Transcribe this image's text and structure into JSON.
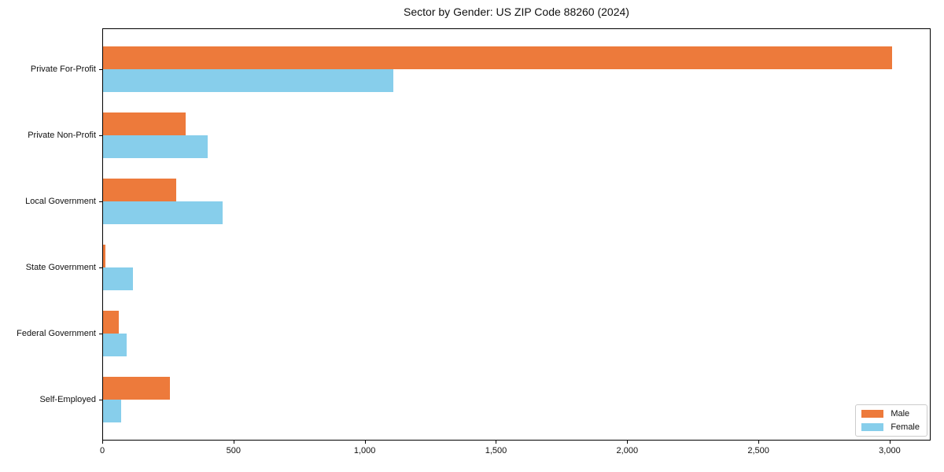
{
  "figure": {
    "title": "Sector by Gender: US ZIP Code 88260 (2024)"
  },
  "chart_data": {
    "type": "bar",
    "orientation": "horizontal",
    "title": "Sector by Gender: US ZIP Code 88260 (2024)",
    "categories": [
      "Private For-Profit",
      "Private Non-Profit",
      "Local Government",
      "State Government",
      "Federal Government",
      "Self-Employed"
    ],
    "series": [
      {
        "name": "Male",
        "color": "#ED7A3B",
        "values": [
          3005,
          315,
          280,
          10,
          60,
          255
        ]
      },
      {
        "name": "Female",
        "color": "#87CEEB",
        "values": [
          1105,
          400,
          455,
          115,
          90,
          70
        ]
      }
    ],
    "xlabel": "",
    "ylabel": "",
    "xlim": [
      0,
      3150
    ],
    "xticks": {
      "values": [
        0,
        500,
        1000,
        1500,
        2000,
        2500,
        3000
      ],
      "labels": [
        "0",
        "500",
        "1,000",
        "1,500",
        "2,000",
        "2,500",
        "3,000"
      ]
    },
    "grid": false,
    "legend": {
      "position": "lower right",
      "entries": [
        "Male",
        "Female"
      ]
    },
    "colors": {
      "male": "#ED7A3B",
      "female": "#87CEEB",
      "spine": "#000000",
      "background": "#ffffff"
    }
  }
}
